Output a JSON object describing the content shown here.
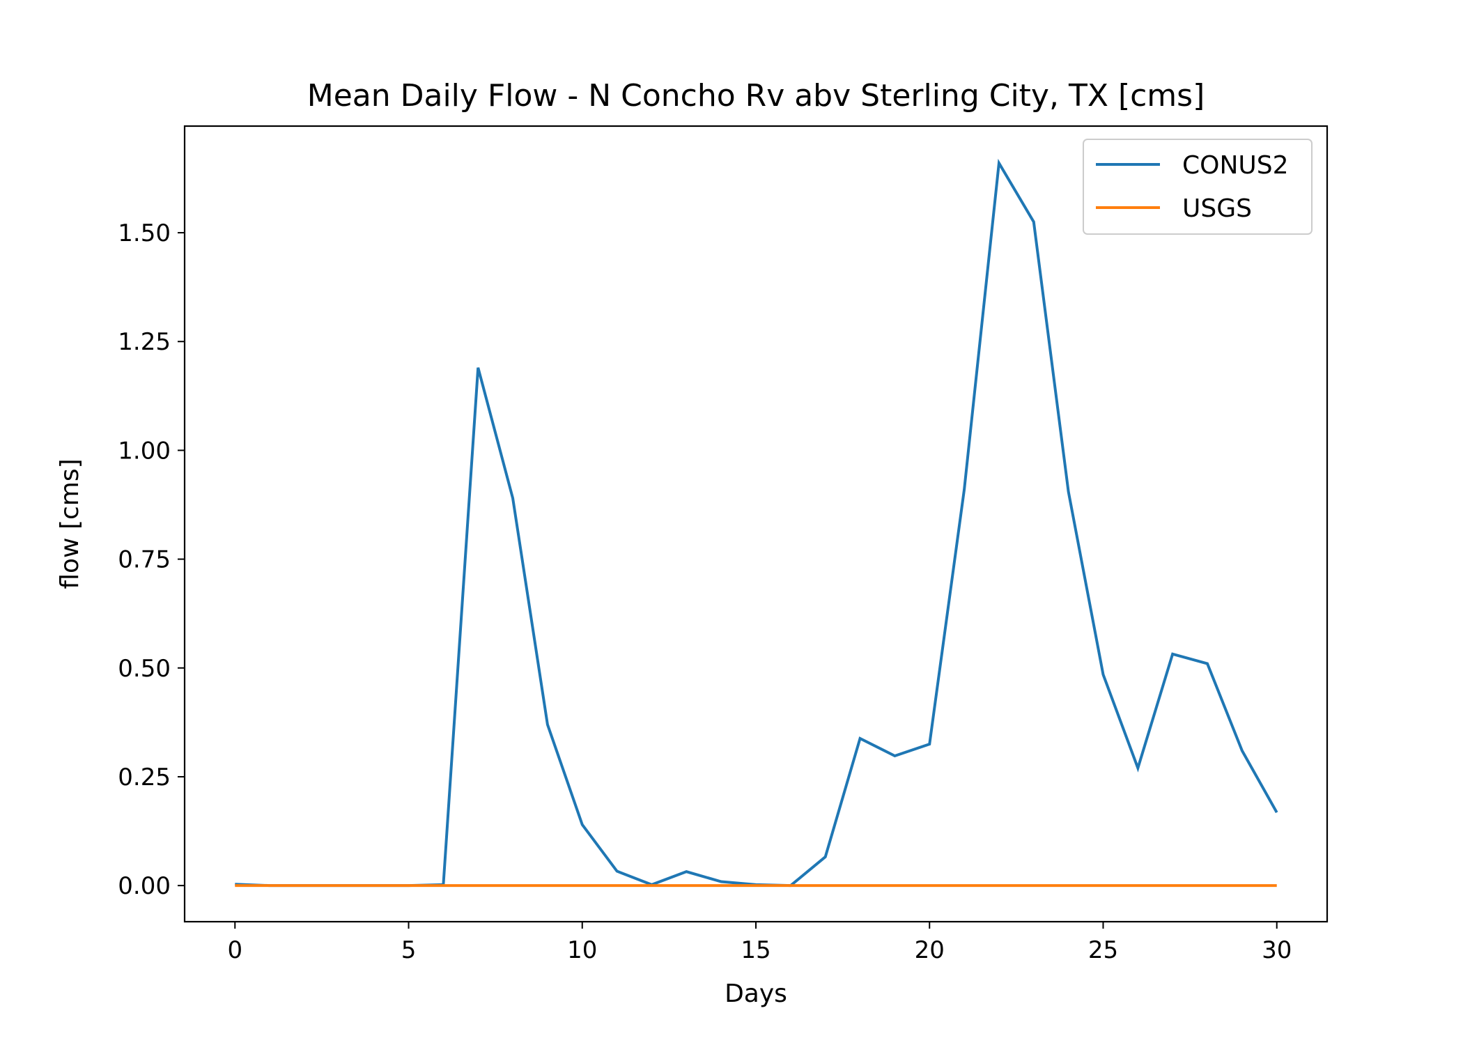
{
  "chart_data": {
    "type": "line",
    "title": "Mean Daily Flow - N Concho Rv abv Sterling City, TX [cms]",
    "xlabel": "Days",
    "ylabel": "flow [cms]",
    "xlim": [
      -1.45,
      31.45
    ],
    "ylim": [
      -0.083,
      1.745
    ],
    "xticks": [
      0,
      5,
      10,
      15,
      20,
      25,
      30
    ],
    "xtick_labels": [
      "0",
      "5",
      "10",
      "15",
      "20",
      "25",
      "30"
    ],
    "yticks": [
      0,
      0.25,
      0.5,
      0.75,
      1.0,
      1.25,
      1.5
    ],
    "ytick_labels": [
      "0.00",
      "0.25",
      "0.50",
      "0.75",
      "1.00",
      "1.25",
      "1.50"
    ],
    "grid": false,
    "legend_position": "top-right",
    "x": [
      0,
      1,
      2,
      3,
      4,
      5,
      6,
      7,
      8,
      9,
      10,
      11,
      12,
      13,
      14,
      15,
      16,
      17,
      18,
      19,
      20,
      21,
      22,
      23,
      24,
      25,
      26,
      27,
      28,
      29,
      30
    ],
    "series": [
      {
        "name": "CONUS2",
        "color": "#1f77b4",
        "values": [
          0.003,
          0.0,
          0.0,
          0.0,
          0.0,
          0.0,
          0.002,
          1.19,
          0.89,
          0.37,
          0.14,
          0.033,
          0.002,
          0.032,
          0.009,
          0.002,
          0.0,
          0.066,
          0.338,
          0.298,
          0.325,
          0.91,
          1.66,
          1.525,
          0.905,
          0.485,
          0.27,
          0.532,
          0.51,
          0.31,
          0.168
        ]
      },
      {
        "name": "USGS",
        "color": "#ff7f0e",
        "values": [
          0,
          0,
          0,
          0,
          0,
          0,
          0,
          0,
          0,
          0,
          0,
          0,
          0,
          0,
          0,
          0,
          0,
          0,
          0,
          0,
          0,
          0,
          0,
          0,
          0,
          0,
          0,
          0,
          0,
          0,
          0
        ]
      }
    ]
  }
}
